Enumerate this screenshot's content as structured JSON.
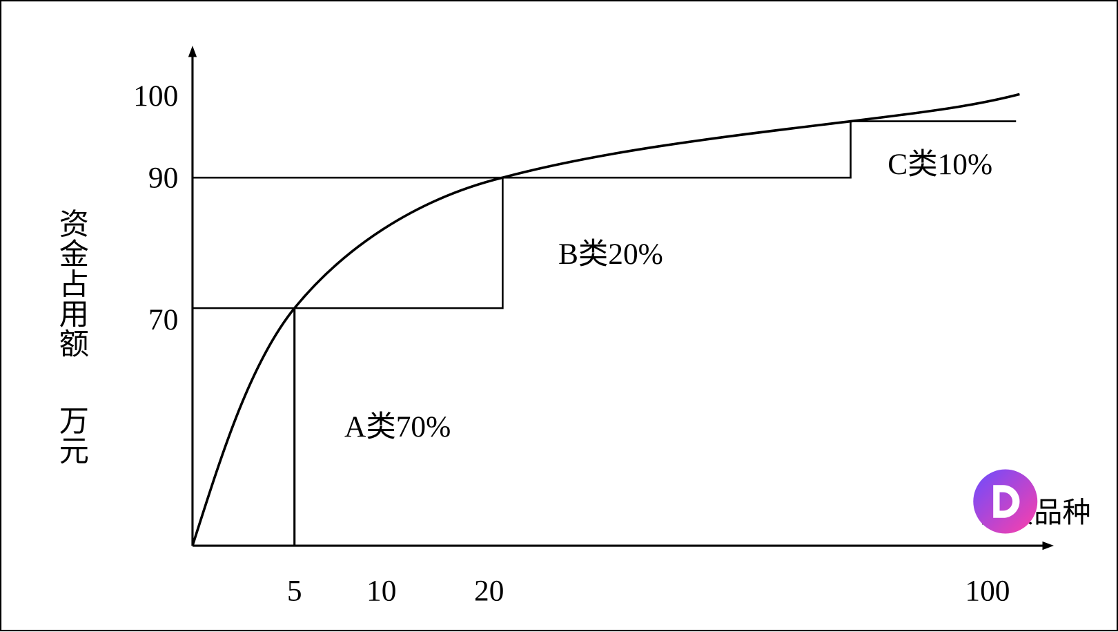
{
  "y_axis": {
    "title": "资金占用额",
    "unit": "万元",
    "labels": [
      "100",
      "90",
      "70"
    ]
  },
  "x_axis": {
    "title": "存货品种",
    "labels": [
      "5",
      "10",
      "20",
      "100"
    ]
  },
  "annotations": [
    "A类70%",
    "B类20%",
    "C类10%"
  ]
}
